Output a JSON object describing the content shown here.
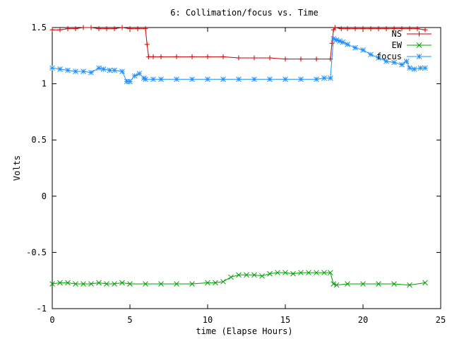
{
  "chart_data": {
    "type": "line",
    "title": "6: Collimation/focus vs. Time",
    "xlabel": "time (Elapse Hours)",
    "ylabel": "Volts",
    "xlim": [
      0,
      25
    ],
    "ylim": [
      -1,
      1.5
    ],
    "xticks": [
      0,
      5,
      10,
      15,
      20,
      25
    ],
    "xtick_labels": [
      "0",
      "5",
      "10",
      "15",
      "20",
      "25"
    ],
    "yticks": [
      -1,
      -0.5,
      0,
      0.5,
      1,
      1.5
    ],
    "ytick_labels": [
      "-1",
      "-0.5",
      "0",
      "0.5",
      "1",
      "1.5"
    ],
    "grid": false,
    "legend_position": "top-right",
    "series": [
      {
        "name": "NS",
        "color": "#cc0000",
        "marker": "plus",
        "x": [
          0,
          0.5,
          1,
          1.5,
          2,
          2.5,
          3,
          3.5,
          4,
          4.5,
          5,
          5.5,
          6.0,
          6.1,
          6.2,
          6.5,
          7,
          8,
          9,
          10,
          11,
          12,
          13,
          14,
          15,
          16,
          17,
          17.9,
          18.0,
          18.1,
          18.2,
          18.6,
          19,
          19.5,
          20,
          20.5,
          21,
          21.5,
          22,
          22.5,
          23,
          23.5,
          24
        ],
        "y": [
          1.48,
          1.48,
          1.49,
          1.49,
          1.5,
          1.5,
          1.49,
          1.49,
          1.49,
          1.5,
          1.49,
          1.49,
          1.49,
          1.35,
          1.24,
          1.24,
          1.24,
          1.24,
          1.24,
          1.24,
          1.24,
          1.23,
          1.23,
          1.23,
          1.22,
          1.22,
          1.22,
          1.22,
          1.36,
          1.48,
          1.5,
          1.49,
          1.49,
          1.49,
          1.49,
          1.49,
          1.49,
          1.49,
          1.49,
          1.49,
          1.49,
          1.49,
          1.48
        ]
      },
      {
        "name": "EW",
        "color": "#00a000",
        "marker": "cross",
        "x": [
          0,
          0.5,
          1,
          1.5,
          2,
          2.5,
          3,
          3.5,
          4,
          4.5,
          5,
          6,
          7,
          8,
          9,
          10,
          10.5,
          11,
          11.5,
          12,
          12.5,
          13,
          13.5,
          14,
          14.5,
          15,
          15.5,
          16,
          16.5,
          17,
          17.5,
          17.9,
          18.1,
          18.3,
          19,
          20,
          21,
          22,
          23,
          24
        ],
        "y": [
          -0.78,
          -0.77,
          -0.77,
          -0.78,
          -0.78,
          -0.78,
          -0.77,
          -0.78,
          -0.78,
          -0.77,
          -0.78,
          -0.78,
          -0.78,
          -0.78,
          -0.78,
          -0.77,
          -0.77,
          -0.76,
          -0.72,
          -0.7,
          -0.7,
          -0.7,
          -0.71,
          -0.69,
          -0.68,
          -0.68,
          -0.69,
          -0.68,
          -0.68,
          -0.68,
          -0.68,
          -0.68,
          -0.78,
          -0.79,
          -0.78,
          -0.78,
          -0.78,
          -0.78,
          -0.79,
          -0.77
        ]
      },
      {
        "name": "focus",
        "color": "#1e90ff",
        "marker": "star",
        "x": [
          0,
          0.5,
          1,
          1.5,
          2,
          2.5,
          3,
          3.3,
          3.7,
          4,
          4.5,
          4.8,
          5.0,
          5.3,
          5.6,
          5.9,
          6.0,
          6.5,
          7,
          8,
          9,
          10,
          11,
          12,
          13,
          14,
          15,
          16,
          17,
          17.5,
          17.9,
          18.1,
          18.3,
          18.5,
          18.7,
          19,
          19.5,
          20,
          20.5,
          21,
          21.5,
          22,
          22.5,
          22.8,
          23.0,
          23.3,
          23.7,
          24
        ],
        "y": [
          1.14,
          1.13,
          1.12,
          1.11,
          1.11,
          1.1,
          1.14,
          1.13,
          1.12,
          1.12,
          1.11,
          1.02,
          1.02,
          1.07,
          1.09,
          1.05,
          1.04,
          1.04,
          1.04,
          1.04,
          1.04,
          1.04,
          1.04,
          1.04,
          1.04,
          1.04,
          1.04,
          1.04,
          1.04,
          1.05,
          1.05,
          1.4,
          1.39,
          1.38,
          1.37,
          1.35,
          1.32,
          1.3,
          1.26,
          1.23,
          1.2,
          1.19,
          1.17,
          1.2,
          1.14,
          1.13,
          1.14,
          1.14
        ]
      }
    ]
  }
}
